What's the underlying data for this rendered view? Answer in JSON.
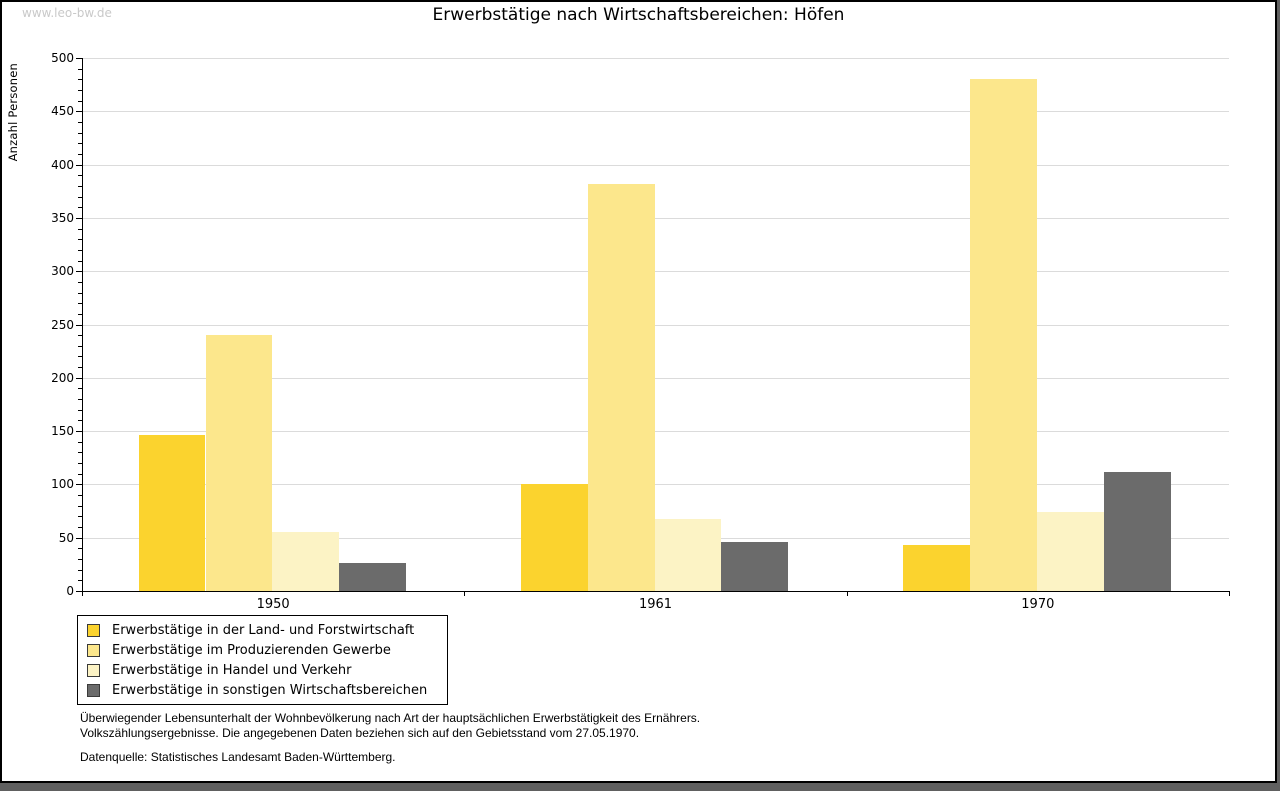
{
  "watermark": "www.leo-bw.de",
  "title": "Erwerbstätige nach Wirtschaftsbereichen: Höfen",
  "chart_data": {
    "type": "bar",
    "title": "Erwerbstätige nach Wirtschaftsbereichen: Höfen",
    "xlabel": "",
    "ylabel": "Anzahl Personen",
    "ylim": [
      0,
      500
    ],
    "ytick_step": 50,
    "yminor_step": 10,
    "yticks": [
      0,
      50,
      100,
      150,
      200,
      250,
      300,
      350,
      400,
      450,
      500
    ],
    "grid": "horizontal-major",
    "legend_position": "bottom-left-boxed",
    "categories": [
      "1950",
      "1961",
      "1970"
    ],
    "series": [
      {
        "name": "Erwerbstätige in der Land- und Forstwirtschaft",
        "color": "#FBD32E",
        "values": [
          146,
          100,
          43
        ]
      },
      {
        "name": "Erwerbstätige im Produzierenden Gewerbe",
        "color": "#FCE78C",
        "values": [
          240,
          382,
          480
        ]
      },
      {
        "name": "Erwerbstätige in Handel und Verkehr",
        "color": "#FCF3C5",
        "values": [
          55,
          68,
          74
        ]
      },
      {
        "name": "Erwerbstätige in sonstigen Wirtschaftsbereichen",
        "color": "#6B6B6B",
        "values": [
          26,
          46,
          112
        ]
      }
    ],
    "colors": {
      "gridline": "#dbdbdb",
      "axis": "#000000",
      "watermark": "#c9c9c9"
    }
  },
  "footnote": {
    "line1": "Überwiegender Lebensunterhalt der Wohnbevölkerung nach Art der hauptsächlichen Erwerbstätigkeit des Ernährers.",
    "line2": "Volkszählungsergebnisse. Die angegebenen Daten beziehen sich auf den Gebietsstand vom 27.05.1970.",
    "source": "Datenquelle: Statistisches Landesamt Baden-Württemberg."
  }
}
